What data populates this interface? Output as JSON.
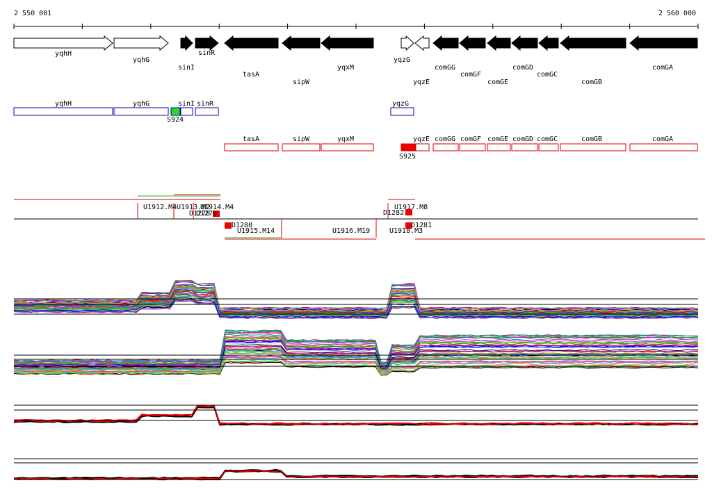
{
  "ruler": {
    "start": "2 550 001",
    "end": "2 560 000"
  },
  "genes": [
    "yqhH",
    "yqhG",
    "sinI",
    "sinR",
    "tasA",
    "sipW",
    "yqxM",
    "yqzG",
    "yqzE",
    "comGG",
    "comGF",
    "comGE",
    "comGD",
    "comGC",
    "comGB",
    "comGA"
  ],
  "blue_features": [
    "yqhH",
    "yqhG",
    "sinI",
    "sinR",
    "yqzG"
  ],
  "blue_segment": "S924",
  "red_features": [
    "tasA",
    "sipW",
    "yqxM",
    "yqzE",
    "comGG",
    "comGF",
    "comGE",
    "comGD",
    "comGC",
    "comGB",
    "comGA"
  ],
  "red_segment": "S925",
  "segments": [
    "U1912.M4",
    "U1913.M2",
    "U1914.M4",
    "D1278",
    "D1279",
    "U1917.M8",
    "D1282",
    "D1280",
    "U1915.M14",
    "U1916.M19",
    "U1918.M3",
    "D1281"
  ]
}
